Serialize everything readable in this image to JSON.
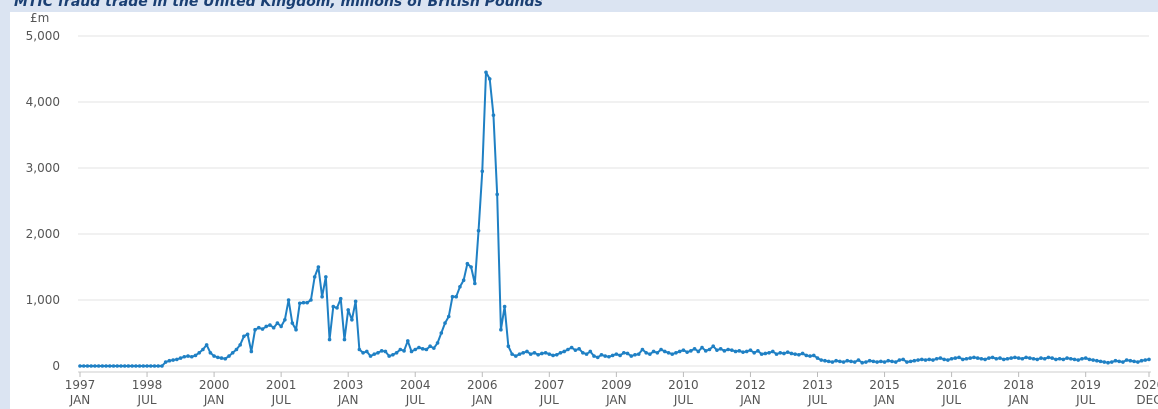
{
  "chart_data": {
    "type": "line",
    "title": "MTIC fraud trade in the United Kingdom, millions of British Pounds",
    "y_unit": "£m",
    "categories": [
      [
        "1997",
        "JAN"
      ],
      null,
      null,
      null,
      null,
      null,
      null,
      null,
      null,
      null,
      null,
      null,
      null,
      null,
      null,
      null,
      null,
      null,
      [
        "1998",
        "JUL"
      ],
      null,
      null,
      null,
      null,
      null,
      null,
      null,
      null,
      null,
      null,
      null,
      null,
      null,
      null,
      null,
      null,
      null,
      [
        "2000",
        "JAN"
      ],
      null,
      null,
      null,
      null,
      null,
      null,
      null,
      null,
      null,
      null,
      null,
      null,
      null,
      null,
      null,
      null,
      null,
      [
        "2001",
        "JUL"
      ],
      null,
      null,
      null,
      null,
      null,
      null,
      null,
      null,
      null,
      null,
      null,
      null,
      null,
      null,
      null,
      null,
      null,
      [
        "2003",
        "JAN"
      ],
      null,
      null,
      null,
      null,
      null,
      null,
      null,
      null,
      null,
      null,
      null,
      null,
      null,
      null,
      null,
      null,
      null,
      [
        "2004",
        "JUL"
      ],
      null,
      null,
      null,
      null,
      null,
      null,
      null,
      null,
      null,
      null,
      null,
      null,
      null,
      null,
      null,
      null,
      null,
      [
        "2006",
        "JAN"
      ],
      null,
      null,
      null,
      null,
      null,
      null,
      null,
      null,
      null,
      null,
      null,
      null,
      null,
      null,
      null,
      null,
      null,
      [
        "2007",
        "JUL"
      ],
      null,
      null,
      null,
      null,
      null,
      null,
      null,
      null,
      null,
      null,
      null,
      null,
      null,
      null,
      null,
      null,
      null,
      [
        "2009",
        "JAN"
      ],
      null,
      null,
      null,
      null,
      null,
      null,
      null,
      null,
      null,
      null,
      null,
      null,
      null,
      null,
      null,
      null,
      null,
      [
        "2010",
        "JUL"
      ],
      null,
      null,
      null,
      null,
      null,
      null,
      null,
      null,
      null,
      null,
      null,
      null,
      null,
      null,
      null,
      null,
      null,
      [
        "2012",
        "JAN"
      ],
      null,
      null,
      null,
      null,
      null,
      null,
      null,
      null,
      null,
      null,
      null,
      null,
      null,
      null,
      null,
      null,
      null,
      [
        "2013",
        "JUL"
      ],
      null,
      null,
      null,
      null,
      null,
      null,
      null,
      null,
      null,
      null,
      null,
      null,
      null,
      null,
      null,
      null,
      null,
      [
        "2015",
        "JAN"
      ],
      null,
      null,
      null,
      null,
      null,
      null,
      null,
      null,
      null,
      null,
      null,
      null,
      null,
      null,
      null,
      null,
      null,
      [
        "2016",
        "JUL"
      ],
      null,
      null,
      null,
      null,
      null,
      null,
      null,
      null,
      null,
      null,
      null,
      null,
      null,
      null,
      null,
      null,
      null,
      [
        "2018",
        "JAN"
      ],
      null,
      null,
      null,
      null,
      null,
      null,
      null,
      null,
      null,
      null,
      null,
      null,
      null,
      null,
      null,
      null,
      null,
      [
        "2019",
        "JUL"
      ],
      null,
      null,
      null,
      null,
      null,
      null,
      null,
      null,
      null,
      null,
      null,
      null,
      null,
      null,
      null,
      null,
      [
        "2020",
        "DEC"
      ]
    ],
    "values": [
      0,
      0,
      0,
      0,
      0,
      0,
      0,
      0,
      0,
      0,
      0,
      0,
      0,
      0,
      0,
      0,
      0,
      0,
      0,
      0,
      0,
      0,
      0,
      60,
      80,
      90,
      100,
      120,
      140,
      150,
      140,
      160,
      200,
      250,
      320,
      200,
      150,
      130,
      120,
      110,
      150,
      200,
      250,
      320,
      450,
      480,
      220,
      550,
      580,
      560,
      600,
      620,
      580,
      650,
      600,
      700,
      1000,
      650,
      550,
      950,
      960,
      960,
      1000,
      1350,
      1500,
      1050,
      1350,
      400,
      900,
      880,
      1020,
      400,
      850,
      700,
      980,
      250,
      200,
      220,
      150,
      180,
      200,
      230,
      220,
      150,
      170,
      200,
      250,
      230,
      380,
      220,
      250,
      280,
      260,
      250,
      300,
      270,
      350,
      500,
      650,
      750,
      1050,
      1050,
      1200,
      1300,
      1550,
      1500,
      1250,
      2050,
      2950,
      4450,
      4350,
      3800,
      2600,
      550,
      900,
      300,
      180,
      150,
      180,
      200,
      220,
      180,
      200,
      170,
      190,
      200,
      180,
      160,
      170,
      200,
      220,
      250,
      280,
      240,
      260,
      200,
      180,
      220,
      150,
      130,
      170,
      150,
      140,
      160,
      180,
      160,
      200,
      190,
      150,
      170,
      180,
      250,
      200,
      180,
      220,
      200,
      250,
      220,
      200,
      180,
      200,
      220,
      240,
      210,
      230,
      260,
      220,
      280,
      230,
      250,
      300,
      240,
      260,
      230,
      250,
      240,
      220,
      230,
      210,
      220,
      240,
      200,
      230,
      180,
      190,
      200,
      220,
      180,
      200,
      190,
      210,
      190,
      180,
      170,
      190,
      160,
      150,
      160,
      120,
      90,
      80,
      70,
      60,
      80,
      70,
      60,
      80,
      70,
      60,
      90,
      50,
      60,
      80,
      70,
      60,
      70,
      60,
      80,
      70,
      60,
      90,
      100,
      60,
      70,
      80,
      90,
      100,
      90,
      100,
      90,
      110,
      120,
      100,
      90,
      110,
      120,
      130,
      100,
      110,
      120,
      130,
      120,
      110,
      100,
      120,
      130,
      110,
      120,
      100,
      110,
      120,
      130,
      120,
      110,
      130,
      120,
      110,
      100,
      120,
      110,
      130,
      120,
      100,
      110,
      100,
      120,
      110,
      100,
      90,
      110,
      120,
      100,
      90,
      80,
      70,
      60,
      50,
      60,
      80,
      70,
      60,
      90,
      80,
      70,
      60,
      80,
      90,
      100
    ],
    "color": "#1f80c4",
    "ylim": [
      0,
      5000
    ],
    "yticks": [
      0,
      {
        "value": 1000,
        "label": "1,000"
      },
      {
        "value": 2000,
        "label": "2,000"
      },
      {
        "value": 3000,
        "label": "3,000"
      },
      {
        "value": 4000,
        "label": "4,000"
      },
      {
        "value": 5000,
        "label": "5,000"
      }
    ],
    "grid": true
  }
}
